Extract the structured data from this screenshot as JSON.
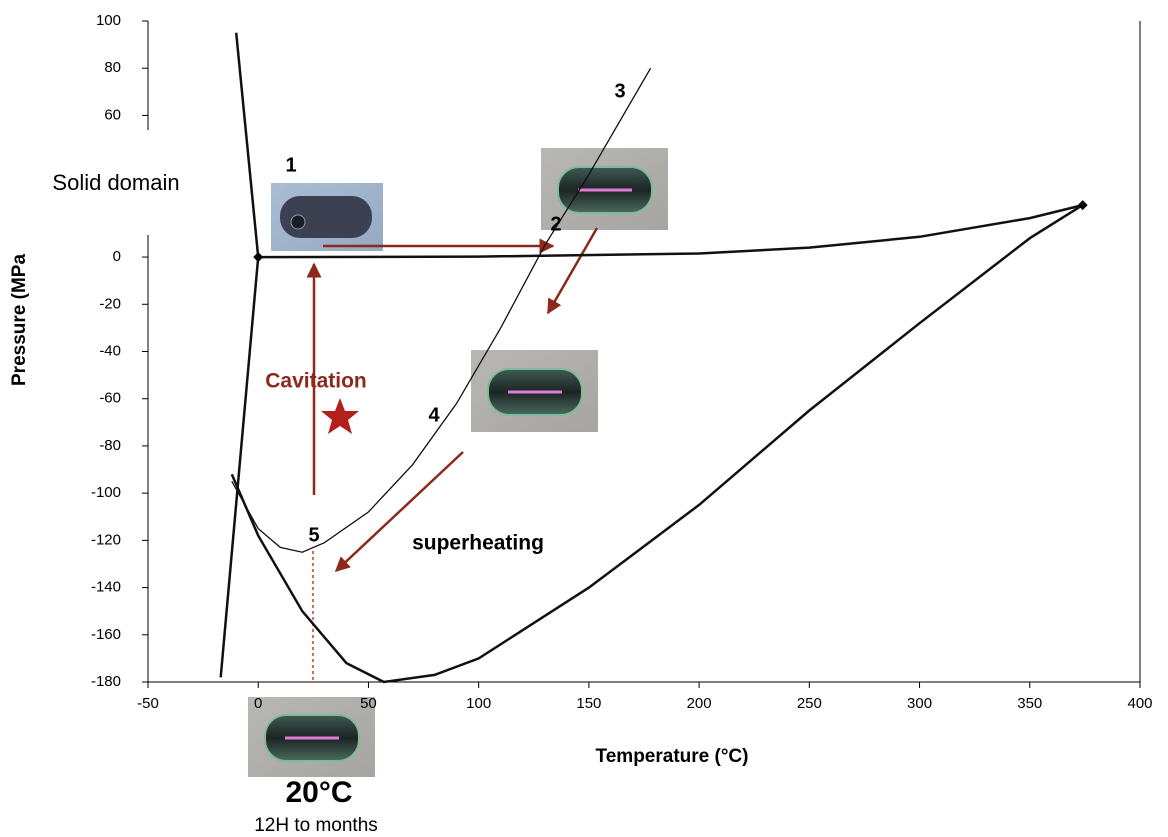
{
  "chart_data": {
    "type": "line",
    "x_label": "Temperature (°C)",
    "y_label": "Pressure (MPa",
    "xlim": [
      -50,
      400
    ],
    "xticks": [
      -50,
      0,
      50,
      100,
      150,
      200,
      250,
      300,
      350,
      400
    ],
    "ylim": [
      -180,
      100
    ],
    "yticks": [
      100,
      80,
      60,
      0,
      -20,
      -40,
      -60,
      -80,
      -100,
      -120,
      -140,
      -160,
      -180
    ],
    "series": [
      {
        "color": "#111111",
        "x": [
          -10,
          0,
          -17
        ],
        "values": [
          95,
          0,
          -178
        ]
      },
      {
        "color": "#111111",
        "x": [
          0,
          100,
          200,
          250,
          300,
          350,
          374
        ],
        "values": [
          0,
          0.2,
          1.5,
          4,
          8.6,
          16.5,
          22
        ]
      },
      {
        "color": "#111111",
        "x": [
          -12,
          0,
          20,
          40,
          57,
          80,
          100,
          150,
          200,
          250,
          300,
          350,
          374
        ],
        "values": [
          -92,
          -118,
          -150,
          -172,
          -180,
          -177,
          -170,
          -140,
          -105,
          -65,
          -28,
          8,
          22
        ]
      },
      {
        "color": "#111111",
        "x": [
          178,
          150,
          130,
          110,
          90,
          70,
          50,
          30,
          20,
          10,
          0,
          -12
        ],
        "values": [
          80,
          35,
          5,
          -30,
          -62,
          -88,
          -108,
          -121,
          -125,
          -123,
          -115,
          -95
        ]
      }
    ],
    "annotations": [
      "1",
      "2",
      "3",
      "4",
      "5",
      "Solid domain",
      "Cavitation",
      "superheating",
      "20°C",
      "12H to months"
    ]
  }
}
